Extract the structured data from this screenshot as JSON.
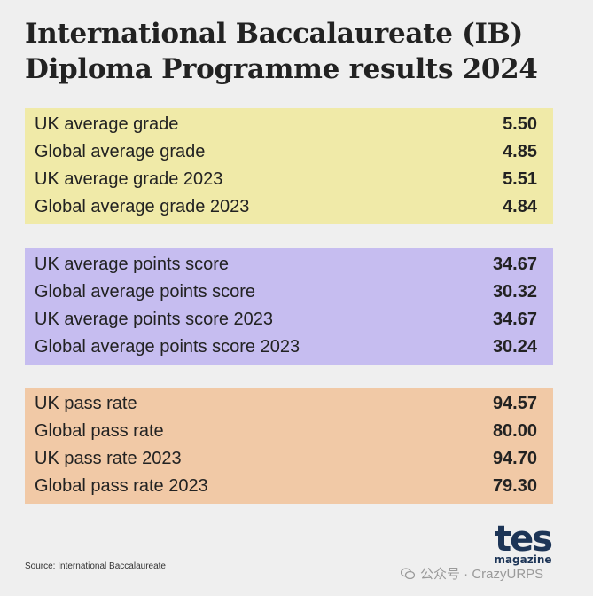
{
  "title": {
    "line1": "International Baccalaureate (IB)",
    "line2": "Diploma Programme results 2024"
  },
  "colors": {
    "background": "#efefef",
    "grades_panel": "#f0eaa8",
    "points_panel": "#c6bdf0",
    "pass_panel": "#f1c9a6",
    "logo": "#1d3557"
  },
  "sections": [
    {
      "name": "grades",
      "rows": [
        {
          "label": "UK average grade",
          "value": "5.50"
        },
        {
          "label": "Global average grade",
          "value": "4.85"
        },
        {
          "label": "UK average grade 2023",
          "value": "5.51"
        },
        {
          "label": "Global average grade 2023",
          "value": "4.84"
        }
      ]
    },
    {
      "name": "points",
      "rows": [
        {
          "label": "UK average points score",
          "value": "34.67"
        },
        {
          "label": "Global average points score",
          "value": "30.32"
        },
        {
          "label": "UK average points score 2023",
          "value": "34.67"
        },
        {
          "label": "Global average points score 2023",
          "value": "30.24"
        }
      ]
    },
    {
      "name": "pass",
      "rows": [
        {
          "label": "UK pass rate",
          "value": "94.57"
        },
        {
          "label": "Global pass rate",
          "value": "80.00"
        },
        {
          "label": "UK pass rate 2023",
          "value": "94.70"
        },
        {
          "label": "Global pass rate 2023",
          "value": "79.30"
        }
      ]
    }
  ],
  "source": "Source: International Baccalaureate",
  "logo": {
    "main": "tes",
    "sub": "magazine"
  },
  "watermark": {
    "icon": "wechat-icon",
    "text": "公众号 · CrazyURPS"
  }
}
